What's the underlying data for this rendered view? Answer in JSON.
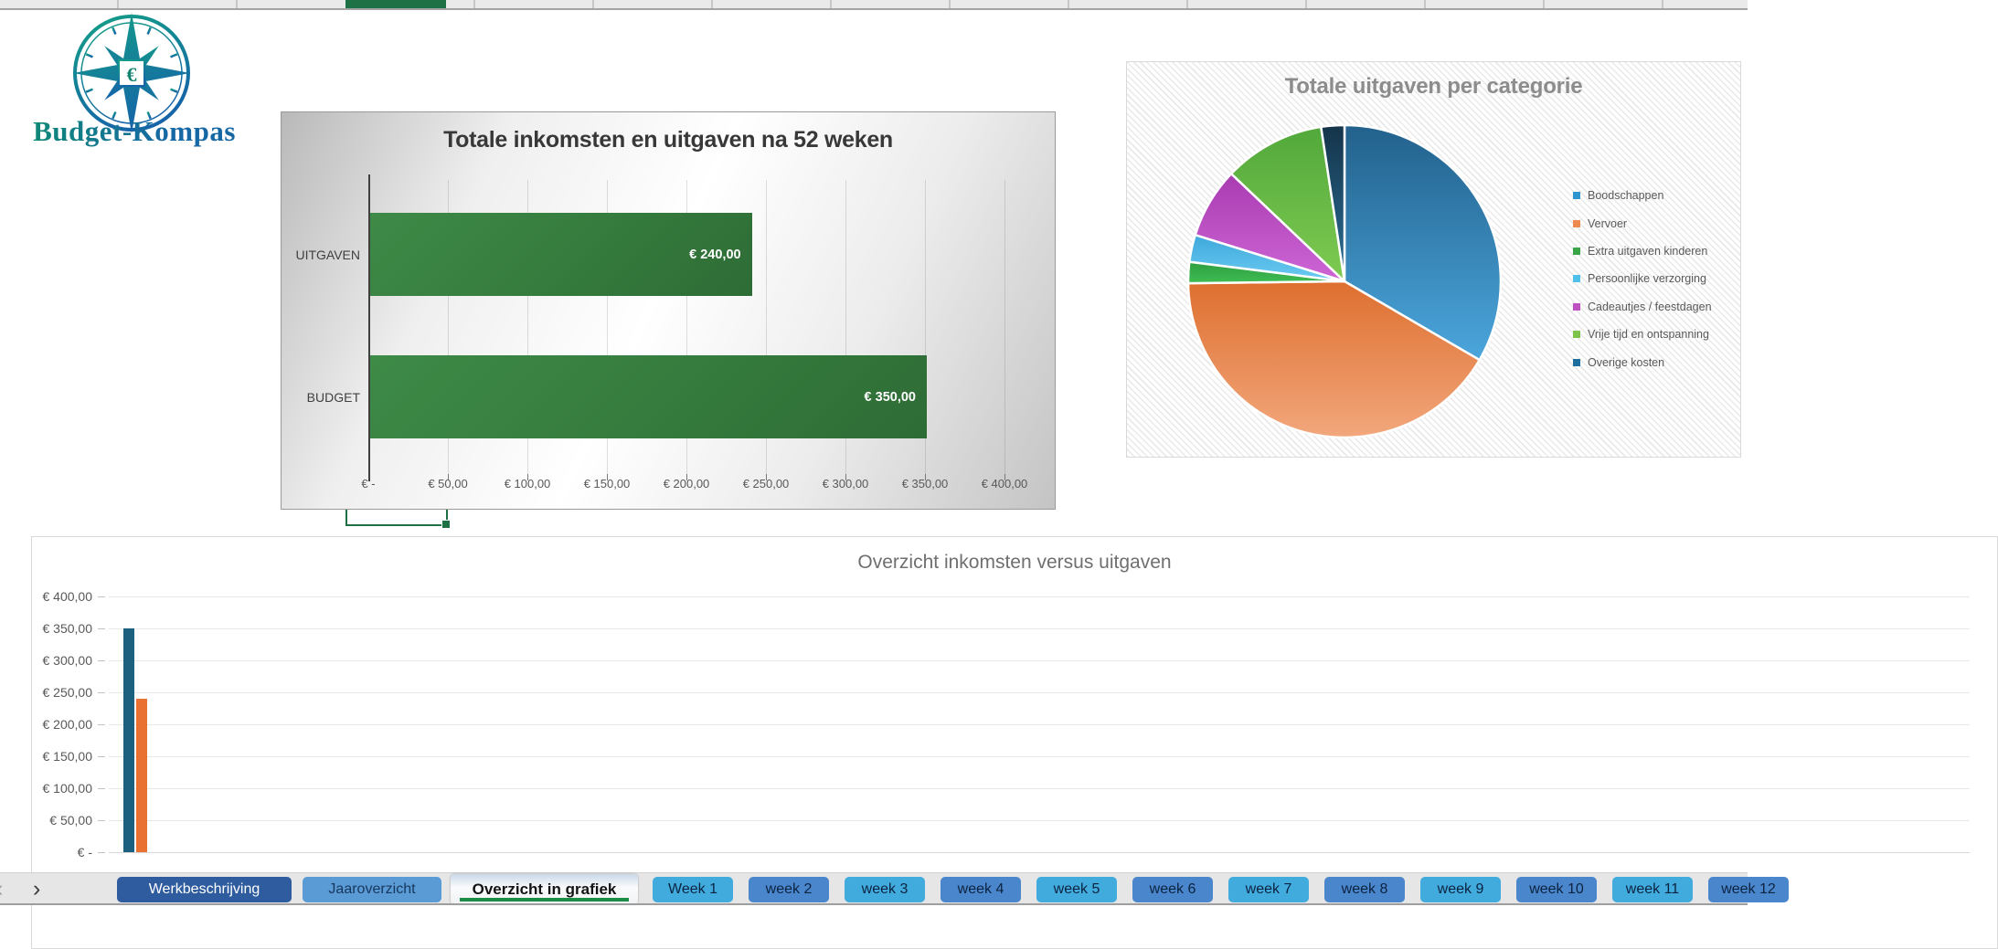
{
  "logo": {
    "title": "Budget-Kompas"
  },
  "tab_nav": {
    "left": "‹",
    "right": "›"
  },
  "sheet_tabs": {
    "main_tabs": [
      {
        "label": "Werkbeschrijving"
      },
      {
        "label": "Jaaroverzicht"
      },
      {
        "label": "Overzicht in grafiek",
        "active": true
      }
    ],
    "week_tabs": [
      {
        "label": "Week 1",
        "shade": "light"
      },
      {
        "label": "week 2",
        "shade": "mid"
      },
      {
        "label": "week 3",
        "shade": "light"
      },
      {
        "label": "week 4",
        "shade": "mid"
      },
      {
        "label": "week 5",
        "shade": "light"
      },
      {
        "label": "week 6",
        "shade": "mid"
      },
      {
        "label": "week 7",
        "shade": "light"
      },
      {
        "label": "week 8",
        "shade": "mid"
      },
      {
        "label": "week 9",
        "shade": "light"
      },
      {
        "label": "week 10",
        "shade": "mid"
      },
      {
        "label": "week 11",
        "shade": "light"
      },
      {
        "label": "week 12",
        "shade": "mid"
      }
    ]
  },
  "chart_data": [
    {
      "type": "bar",
      "orientation": "horizontal",
      "title": "Totale inkomsten en uitgaven na 52 weken",
      "categories": [
        "UITGAVEN",
        "BUDGET"
      ],
      "values": [
        240,
        350
      ],
      "value_labels": [
        "€ 240,00",
        "€ 350,00"
      ],
      "xlim": [
        0,
        400
      ],
      "x_tick_labels": [
        "€ -",
        "€ 50,00",
        "€ 100,00",
        "€ 150,00",
        "€ 200,00",
        "€ 250,00",
        "€ 300,00",
        "€ 350,00",
        "€ 400,00"
      ],
      "grid": true,
      "bar_color": "#37803F"
    },
    {
      "type": "pie",
      "title": "Totale uitgaven per categorie",
      "labels": [
        "Boodschappen",
        "Vervoer",
        "Extra uitgaven kinderen",
        "Persoonlijke verzorging",
        "Cadeautjes / feestdagen",
        "Vrije tijd en ontspanning",
        "Overige kosten"
      ],
      "values_percent": [
        33.4,
        41.4,
        2.2,
        2.8,
        7.3,
        10.5,
        2.4
      ],
      "legend_colors": [
        "#2E96CE",
        "#EE8A50",
        "#38A546",
        "#4EC0EA",
        "#BE52C2",
        "#7CC34A",
        "#1E6E9E"
      ],
      "slice_gradients": [
        [
          "#22618C",
          "#4BA6DC"
        ],
        [
          "#DE6F2F",
          "#F2A77C"
        ],
        [
          "#2E9E41",
          "#3FBC52"
        ],
        [
          "#3EA8DB",
          "#6BCBF2"
        ],
        [
          "#A83BB0",
          "#CE66D6"
        ],
        [
          "#52A83B",
          "#7FCB52"
        ],
        [
          "#15344A",
          "#2A6E96"
        ]
      ],
      "legend_position": "right"
    },
    {
      "type": "bar",
      "orientation": "vertical",
      "title": "Overzicht inkomsten versus uitgaven",
      "series": [
        {
          "name": "",
          "color": "#1B607E",
          "values": [
            350
          ]
        },
        {
          "name": "",
          "color": "#E97132",
          "values": [
            240
          ]
        }
      ],
      "ylim": [
        0,
        400
      ],
      "y_tick_labels": [
        "€ 400,00",
        "€ 350,00",
        "€ 300,00",
        "€ 250,00",
        "€ 200,00",
        "€ 150,00",
        "€ 100,00",
        "€ 50,00",
        "€ -"
      ],
      "grid": true
    }
  ]
}
